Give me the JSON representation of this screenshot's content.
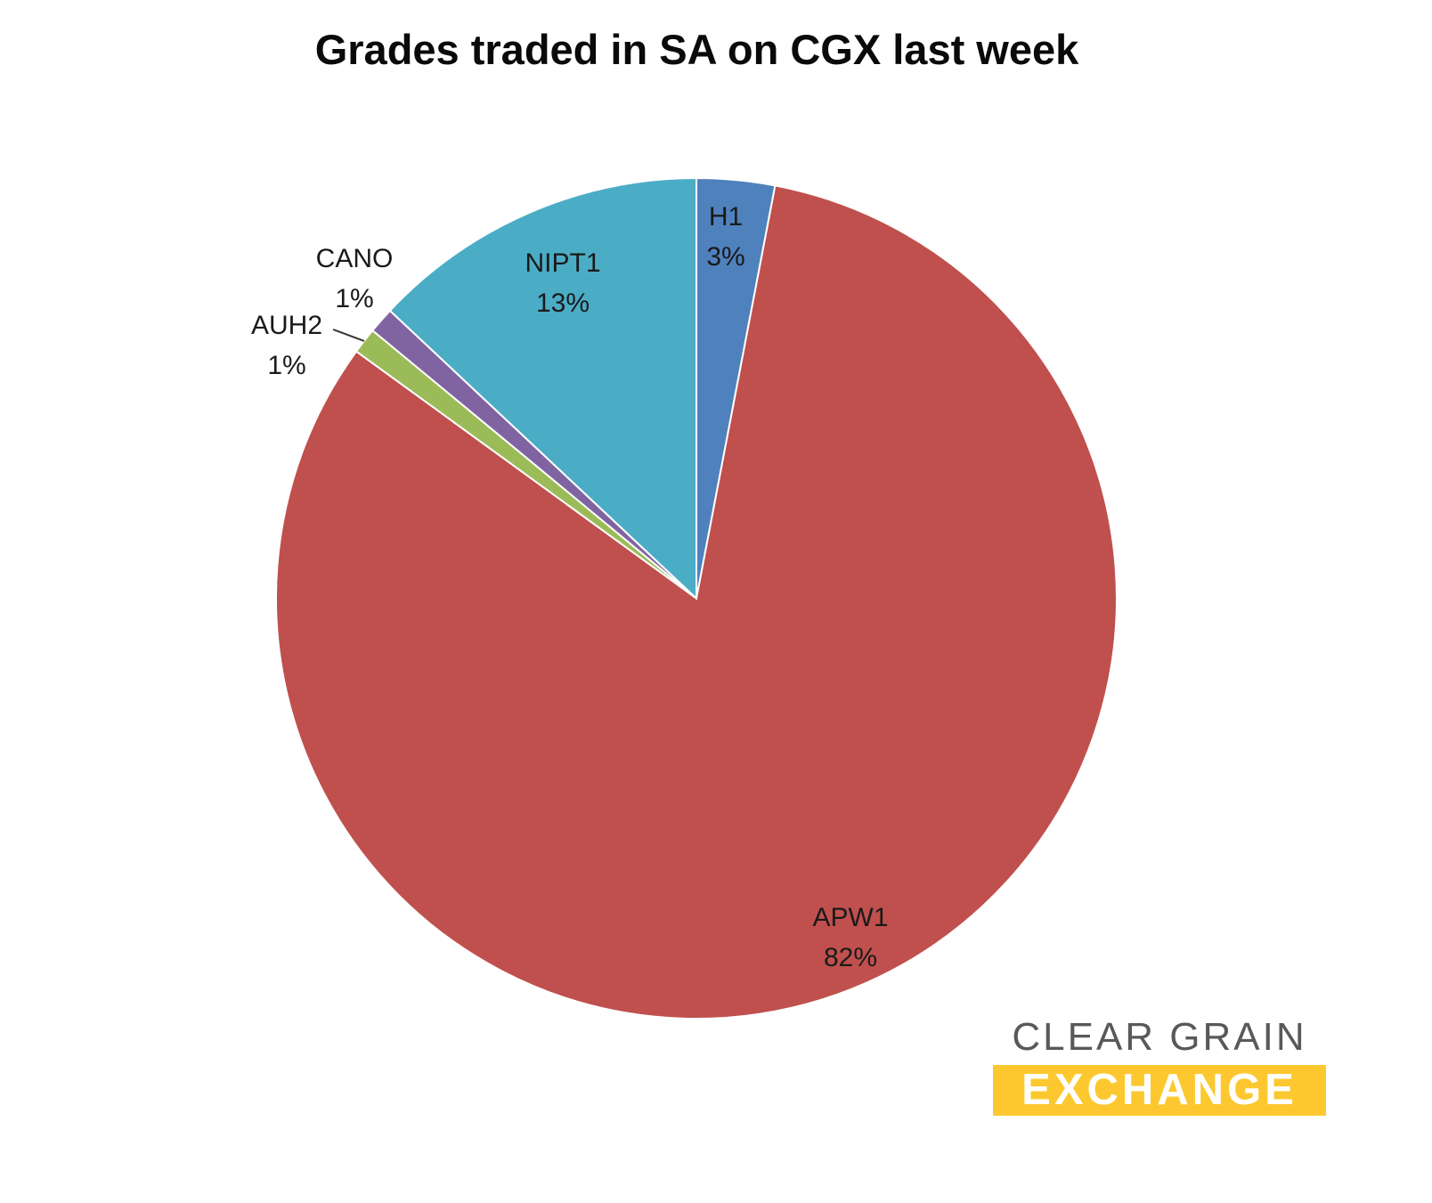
{
  "chart_data": {
    "type": "pie",
    "title": "Grades traded in SA on CGX last week",
    "categories": [
      "H1",
      "APW1",
      "AUH2",
      "CANO",
      "NIPT1"
    ],
    "values": [
      3,
      82,
      1,
      1,
      13
    ],
    "values_unit": "percent",
    "colors": [
      "#4f81bd",
      "#c0504d",
      "#9bbb59",
      "#8064a2",
      "#4bacc6"
    ],
    "start_angle_deg": 0,
    "direction": "clockwise",
    "legend": "none",
    "slice_labels": [
      {
        "name": "H1",
        "value_label": "3%",
        "placement": "inside",
        "leader_line": false
      },
      {
        "name": "APW1",
        "value_label": "82%",
        "placement": "inside",
        "leader_line": false
      },
      {
        "name": "AUH2",
        "value_label": "1%",
        "placement": "outside",
        "leader_line": true
      },
      {
        "name": "CANO",
        "value_label": "1%",
        "placement": "outside",
        "leader_line": false
      },
      {
        "name": "NIPT1",
        "value_label": "13%",
        "placement": "inside",
        "leader_line": false
      }
    ]
  },
  "logo": {
    "line1": "CLEAR GRAIN",
    "line2": "EXCHANGE",
    "text_color": "#58595b",
    "accent_color": "#fdc82f"
  }
}
